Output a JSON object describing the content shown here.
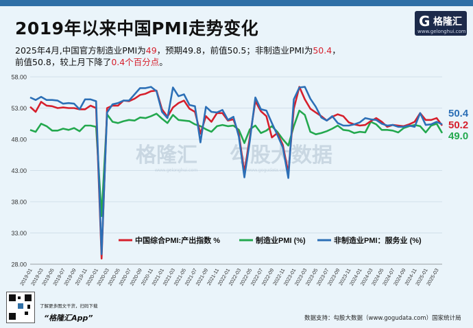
{
  "header": {
    "title": "2019年以来中国PMI走势变化",
    "line1_pre": "2025年4月,中国官方制造业PMI为",
    "line1_val": "49",
    "line1_mid": "，预期49.8，前值50.5；非制造业PMI为",
    "line1_val2": "50.4",
    "line1_end": "，",
    "line2_pre": "前值50.8，较上月下降了",
    "line2_val": "0.4个百分点",
    "line2_end": "。"
  },
  "logo": {
    "glyph": "G",
    "text": "格隆汇",
    "url": "www.gelonghui.com"
  },
  "watermark": {
    "left": "格隆汇",
    "left_url": "www.gelonghui.com",
    "right": "勾股大数据",
    "right_url": "www.gogudata.com"
  },
  "footer": {
    "qr_note": "了解更多图文干货，扫码下载",
    "app": "“格隆汇App”",
    "source": "数据支持：勾股大数据（www.gogudata.com）国家统计局"
  },
  "colors": {
    "composite": "#d61f2c",
    "manufacturing": "#23a84e",
    "non_manufacturing": "#2c6fb6",
    "bg": "#eaf4fa"
  },
  "chart_data": {
    "type": "line",
    "ylim": [
      28,
      58
    ],
    "yticks": [
      "28.00",
      "33.00",
      "38.00",
      "43.00",
      "48.00",
      "53.00",
      "58.00"
    ],
    "grid": true,
    "legend_position": "bottom-right",
    "x_tick_labels": [
      "2019-01",
      "2019-03",
      "2019-05",
      "2019-07",
      "2019-09",
      "2019-11",
      "2020-01",
      "2020-03",
      "2020-05",
      "2020-07",
      "2020-09",
      "2020-11",
      "2021-01",
      "2021-03",
      "2021-05",
      "2021-07",
      "2021-09",
      "2021-11",
      "2022-01",
      "2022-03",
      "2022-05",
      "2022-07",
      "2022-09",
      "2022-11",
      "2023-01",
      "2023-03",
      "2023-05",
      "2023-07",
      "2023-09",
      "2023-11",
      "2024-01",
      "2024-03",
      "2024-05",
      "2024-07",
      "2024-09",
      "2024-11",
      "2025-01",
      "2025-03"
    ],
    "x_start": "2019-01",
    "end_labels": [
      "50.4",
      "50.2",
      "49.0"
    ],
    "series": [
      {
        "name": "中国综合PMI:产出指数 %",
        "key": "composite",
        "values": [
          53.2,
          52.4,
          54.0,
          53.4,
          53.3,
          53.0,
          53.1,
          53.0,
          53.0,
          52.8,
          52.8,
          53.4,
          53.0,
          28.9,
          53.0,
          53.4,
          53.4,
          54.2,
          54.1,
          54.5,
          55.1,
          55.3,
          55.7,
          55.8,
          52.8,
          51.6,
          53.1,
          53.8,
          54.2,
          52.9,
          52.4,
          48.9,
          51.7,
          50.8,
          52.2,
          52.2,
          51.0,
          51.2,
          48.8,
          42.7,
          48.4,
          54.1,
          52.5,
          51.7,
          48.3,
          49.0,
          47.1,
          42.6,
          52.9,
          56.4,
          54.4,
          52.9,
          52.3,
          51.7,
          51.0,
          51.6,
          52.0,
          51.7,
          50.7,
          50.4,
          50.2,
          50.3,
          50.9,
          51.4,
          50.8,
          50.0,
          50.3,
          50.2,
          50.1,
          50.4,
          50.8,
          52.2,
          51.1,
          51.1,
          51.4,
          50.2
        ]
      },
      {
        "name": "制造业PMI (%)",
        "key": "manufacturing",
        "values": [
          49.5,
          49.2,
          50.5,
          50.1,
          49.4,
          49.4,
          49.7,
          49.5,
          49.8,
          49.3,
          50.2,
          50.2,
          50.0,
          35.7,
          52.0,
          50.8,
          50.6,
          50.9,
          51.1,
          51.0,
          51.5,
          51.4,
          51.7,
          52.1,
          51.3,
          50.6,
          51.9,
          51.1,
          51.0,
          50.9,
          50.4,
          50.1,
          49.6,
          49.2,
          50.1,
          50.3,
          50.1,
          50.2,
          49.5,
          47.4,
          49.6,
          50.2,
          49.0,
          49.4,
          50.1,
          49.2,
          48.0,
          47.0,
          50.1,
          52.6,
          51.9,
          49.2,
          48.8,
          49.0,
          49.3,
          49.7,
          50.2,
          49.5,
          49.4,
          49.0,
          49.2,
          49.1,
          50.8,
          50.4,
          49.5,
          49.5,
          49.4,
          49.1,
          49.8,
          50.1,
          50.3,
          50.1,
          49.1,
          50.2,
          50.5,
          49.0
        ]
      },
      {
        "name": "非制造业PMI：服务业 (%)",
        "key": "non_manufacturing",
        "values": [
          54.7,
          54.3,
          54.8,
          54.3,
          54.3,
          54.2,
          53.7,
          53.8,
          53.7,
          52.8,
          54.4,
          54.4,
          54.1,
          29.6,
          52.3,
          53.6,
          53.8,
          54.2,
          54.2,
          55.2,
          56.2,
          56.2,
          56.4,
          55.7,
          52.4,
          51.4,
          56.3,
          54.9,
          55.2,
          53.5,
          53.3,
          47.5,
          53.2,
          52.4,
          52.3,
          52.7,
          51.1,
          51.6,
          48.4,
          41.9,
          47.8,
          54.7,
          52.8,
          52.6,
          50.6,
          48.7,
          46.7,
          41.8,
          54.4,
          56.3,
          56.4,
          54.5,
          53.2,
          51.5,
          51.0,
          51.7,
          50.6,
          50.2,
          50.2,
          50.4,
          50.7,
          51.4,
          51.2,
          51.1,
          50.5,
          50.2,
          50.3,
          50.0,
          50.0,
          50.2,
          50.0,
          52.2,
          50.3,
          50.4,
          50.8,
          50.4
        ]
      }
    ]
  }
}
